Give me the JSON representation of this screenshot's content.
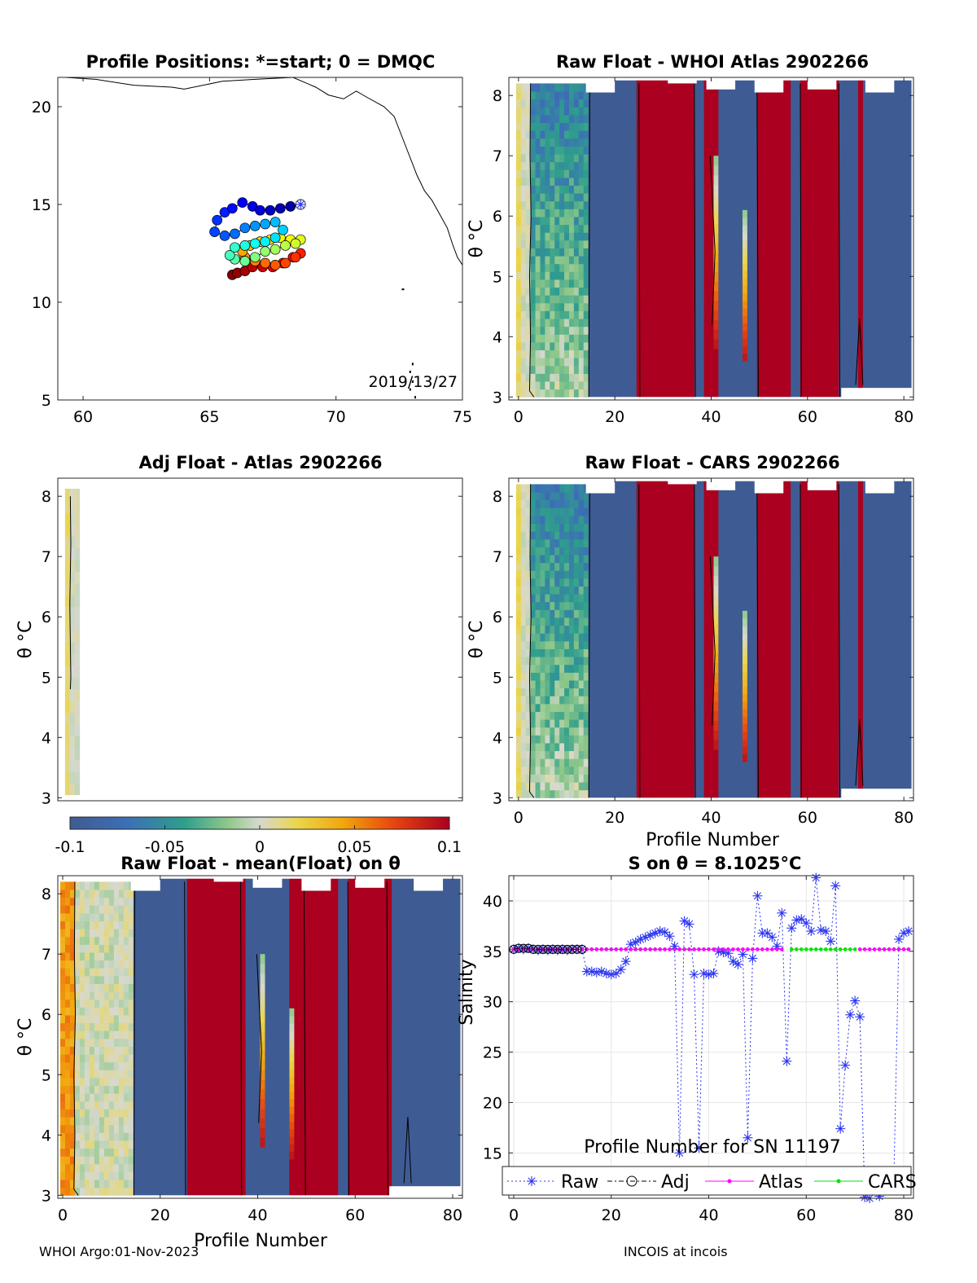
{
  "footer": {
    "left": "WHOI Argo:01-Nov-2023",
    "right": "INCOIS at incois"
  },
  "colors": {
    "blue": "#3F5B93",
    "red": "#AB001F",
    "raw": "#2C35F2",
    "adj": "#000000",
    "atlas": "#FF00FF",
    "cars": "#00E600"
  },
  "colorbar": {
    "ticks": [
      "-0.1",
      "-0.05",
      "0",
      "0.05",
      "0.1"
    ],
    "range": [
      -0.1,
      0.1
    ]
  },
  "chart_data": [
    {
      "type": "scatter",
      "title": "Profile Positions: *=start; 0 = DMQC",
      "xlim": [
        59,
        75
      ],
      "ylim": [
        5,
        21.5
      ],
      "xticks": [
        "60",
        "65",
        "70",
        "75"
      ],
      "yticks": [
        "5",
        "10",
        "15",
        "20"
      ],
      "annotation": "2019/13/27",
      "start": [
        68.6,
        15.0
      ],
      "track_lon": [
        68.6,
        68.2,
        67.8,
        67.4,
        67.0,
        66.7,
        66.3,
        65.9,
        65.6,
        65.3,
        65.2,
        65.6,
        66.0,
        66.4,
        66.8,
        67.2,
        67.6,
        67.9,
        67.6,
        67.2,
        66.8,
        66.4,
        66.0,
        65.8,
        66.0,
        66.4,
        66.8,
        67.2,
        67.6,
        68.0,
        68.4,
        68.6,
        68.2,
        67.8,
        67.4,
        67.0,
        66.6,
        66.3,
        66.4,
        66.8,
        67.2,
        67.6,
        68.0,
        68.4,
        68.6,
        68.3,
        67.9,
        67.5,
        67.1,
        66.7,
        66.4,
        66.1,
        65.9
      ],
      "track_lat": [
        15.0,
        14.9,
        14.8,
        14.7,
        14.7,
        14.9,
        15.1,
        14.8,
        14.6,
        14.2,
        13.6,
        13.4,
        13.5,
        13.8,
        13.9,
        14.0,
        14.1,
        13.7,
        13.3,
        13.1,
        13.0,
        12.9,
        12.8,
        12.4,
        12.2,
        12.1,
        12.3,
        12.6,
        12.7,
        12.9,
        13.0,
        13.2,
        13.2,
        13.3,
        13.2,
        13.1,
        12.9,
        12.6,
        12.3,
        12.1,
        12.0,
        11.9,
        12.0,
        12.3,
        12.5,
        12.3,
        12.0,
        11.8,
        11.8,
        11.8,
        11.6,
        11.5,
        11.4
      ]
    },
    {
      "type": "heatmap",
      "title": "Raw Float - WHOI Atlas  2902266",
      "xlim": [
        -2,
        82
      ],
      "ylim": [
        2.95,
        8.3
      ],
      "xticks": [
        "0",
        "20",
        "40",
        "60",
        "80"
      ],
      "yticks": [
        "3",
        "4",
        "5",
        "6",
        "7",
        "8"
      ],
      "ylabel": "θ °C"
    },
    {
      "type": "heatmap",
      "title": "Adj Float - Atlas  2902266",
      "xlim": [
        -2,
        82
      ],
      "ylim": [
        2.95,
        8.3
      ],
      "yticks": [
        "3",
        "4",
        "5",
        "6",
        "7",
        "8"
      ],
      "ylabel": "θ °C"
    },
    {
      "type": "heatmap",
      "title": "Raw Float - CARS  2902266",
      "xlim": [
        -2,
        82
      ],
      "ylim": [
        2.95,
        8.3
      ],
      "xticks": [
        "0",
        "20",
        "40",
        "60",
        "80"
      ],
      "yticks": [
        "3",
        "4",
        "5",
        "6",
        "7",
        "8"
      ],
      "xlabel": "Profile Number",
      "ylabel": "θ °C"
    },
    {
      "type": "heatmap",
      "title": "Raw Float - mean(Float) on θ",
      "xlim": [
        -1,
        82
      ],
      "ylim": [
        2.95,
        8.3
      ],
      "xticks": [
        "0",
        "20",
        "40",
        "60",
        "80"
      ],
      "yticks": [
        "3",
        "4",
        "5",
        "6",
        "7",
        "8"
      ],
      "xlabel": "Profile Number",
      "ylabel": "θ °C"
    },
    {
      "type": "line",
      "title": "S on θ = 8.1025°C",
      "xlabel": "Profile Number for SN 11197",
      "ylabel": "Salinity",
      "xlim": [
        -1,
        82
      ],
      "ylim": [
        10.5,
        42.5
      ],
      "xticks": [
        "0",
        "20",
        "40",
        "60",
        "80"
      ],
      "yticks": [
        "15",
        "20",
        "25",
        "30",
        "35",
        "40"
      ],
      "grid": true,
      "legend": "bottom, outside",
      "series": [
        {
          "name": "Raw",
          "x": [
            0,
            1,
            2,
            3,
            4,
            5,
            6,
            7,
            8,
            9,
            10,
            11,
            12,
            13,
            14,
            15,
            16,
            17,
            18,
            19,
            20,
            21,
            22,
            23,
            24,
            25,
            26,
            27,
            28,
            29,
            30,
            31,
            32,
            33,
            34,
            35,
            36,
            37,
            38,
            39,
            40,
            41,
            42,
            43,
            44,
            45,
            46,
            47,
            48,
            49,
            50,
            51,
            52,
            53,
            54,
            55,
            56,
            57,
            58,
            59,
            60,
            61,
            62,
            63,
            64,
            65,
            66,
            67,
            68,
            69,
            70,
            71,
            72,
            73,
            74,
            75,
            76,
            77,
            78,
            79,
            80,
            81
          ],
          "y": [
            35.2,
            35.3,
            35.2,
            35.3,
            35.2,
            35.1,
            35.2,
            35.1,
            35.2,
            35.1,
            35.2,
            35.1,
            35.2,
            35.2,
            35.2,
            33.0,
            33.0,
            32.9,
            33.0,
            32.8,
            32.7,
            32.8,
            33.2,
            34.0,
            35.7,
            35.9,
            36.2,
            36.4,
            36.6,
            36.8,
            37.0,
            36.9,
            36.5,
            35.5,
            15.0,
            38.0,
            37.7,
            32.7,
            15.5,
            32.8,
            32.7,
            32.8,
            35.0,
            34.9,
            34.8,
            34.0,
            33.7,
            34.7,
            16.5,
            34.3,
            40.5,
            36.8,
            36.8,
            36.4,
            35.5,
            38.8,
            24.1,
            37.3,
            38.1,
            38.2,
            37.8,
            37.0,
            42.3,
            37.1,
            37.0,
            36.0,
            41.5,
            17.4,
            23.7,
            28.7,
            30.1,
            28.5,
            10.6,
            10.5,
            11.4,
            10.7,
            11.3,
            12.6,
            13.0,
            36.2,
            36.8,
            37.0
          ]
        },
        {
          "name": "Adj",
          "x": [
            0,
            1,
            2,
            3,
            4,
            5,
            6,
            7,
            8,
            9,
            10,
            11,
            12,
            13,
            14
          ],
          "y": [
            35.2,
            35.3,
            35.3,
            35.3,
            35.2,
            35.2,
            35.2,
            35.2,
            35.2,
            35.2,
            35.2,
            35.2,
            35.2,
            35.2,
            35.2
          ]
        },
        {
          "name": "Atlas",
          "x": [
            0,
            1,
            2,
            3,
            4,
            5,
            6,
            7,
            8,
            9,
            10,
            11,
            12,
            13,
            14,
            15,
            16,
            17,
            18,
            19,
            20,
            21,
            22,
            23,
            24,
            25,
            26,
            27,
            28,
            29,
            30,
            31,
            32,
            33,
            34,
            35,
            36,
            37,
            38,
            39,
            40,
            41,
            42,
            43,
            44,
            45,
            46,
            47,
            48,
            49,
            50,
            51,
            52,
            53,
            54,
            55,
            56,
            57,
            58,
            59,
            60,
            61,
            62,
            63,
            64,
            65,
            66,
            67,
            68,
            69,
            70,
            71,
            72,
            73,
            74,
            75,
            76,
            77,
            78,
            79,
            80,
            81
          ],
          "y": [
            35.2,
            35.2,
            35.2,
            35.2,
            35.2,
            35.2,
            35.2,
            35.2,
            35.2,
            35.2,
            35.2,
            35.2,
            35.2,
            35.2,
            35.2,
            35.2,
            35.2,
            35.2,
            35.2,
            35.2,
            35.2,
            35.2,
            35.2,
            35.2,
            35.2,
            35.2,
            35.2,
            35.2,
            35.2,
            35.2,
            35.2,
            35.2,
            35.2,
            35.2,
            35.2,
            35.2,
            35.2,
            35.2,
            35.2,
            35.2,
            35.2,
            35.2,
            35.2,
            35.2,
            35.2,
            35.2,
            35.2,
            35.2,
            35.2,
            35.2,
            35.2,
            35.2,
            35.2,
            35.2,
            35.2,
            35.2,
            null,
            null,
            null,
            null,
            null,
            null,
            null,
            null,
            null,
            null,
            null,
            null,
            null,
            null,
            null,
            35.2,
            35.2,
            35.2,
            35.2,
            35.2,
            35.2,
            35.2,
            35.2,
            35.2,
            35.2,
            35.2
          ]
        },
        {
          "name": "CARS",
          "x": [
            0,
            1,
            2,
            3,
            4,
            5,
            6,
            7,
            8,
            9,
            10,
            11,
            12,
            13,
            14,
            15,
            16,
            17,
            18,
            19,
            20,
            21,
            22,
            23,
            24,
            25,
            26,
            27,
            28,
            29,
            30,
            31,
            32,
            33,
            34,
            35,
            36,
            37,
            38,
            39,
            40,
            41,
            42,
            43,
            44,
            45,
            46,
            47,
            48,
            49,
            50,
            51,
            52,
            53,
            54,
            55,
            56,
            57,
            58,
            59,
            60,
            61,
            62,
            63,
            64,
            65,
            66,
            67,
            68,
            69,
            70,
            71,
            72,
            73,
            74,
            75,
            76,
            77,
            78,
            79,
            80,
            81
          ],
          "y": [
            35.2,
            35.2,
            35.2,
            35.2,
            35.2,
            35.2,
            null,
            null,
            null,
            null,
            null,
            null,
            35.2,
            35.2,
            35.2,
            35.2,
            35.2,
            35.2,
            35.2,
            35.2,
            35.2,
            35.2,
            35.2,
            35.2,
            35.2,
            35.2,
            35.2,
            35.2,
            35.2,
            35.2,
            35.2,
            35.2,
            35.2,
            35.2,
            35.2,
            35.2,
            35.2,
            35.2,
            35.2,
            35.2,
            35.2,
            null,
            null,
            null,
            null,
            null,
            null,
            null,
            null,
            null,
            null,
            null,
            null,
            null,
            null,
            null,
            null,
            35.2,
            35.2,
            35.2,
            35.2,
            35.2,
            35.2,
            35.2,
            35.2,
            35.2,
            35.2,
            35.2,
            35.2,
            35.2,
            35.2,
            null,
            null,
            null,
            null,
            35.2,
            35.2,
            35.2,
            35.2,
            35.2,
            35.2,
            35.2
          ]
        }
      ]
    }
  ]
}
